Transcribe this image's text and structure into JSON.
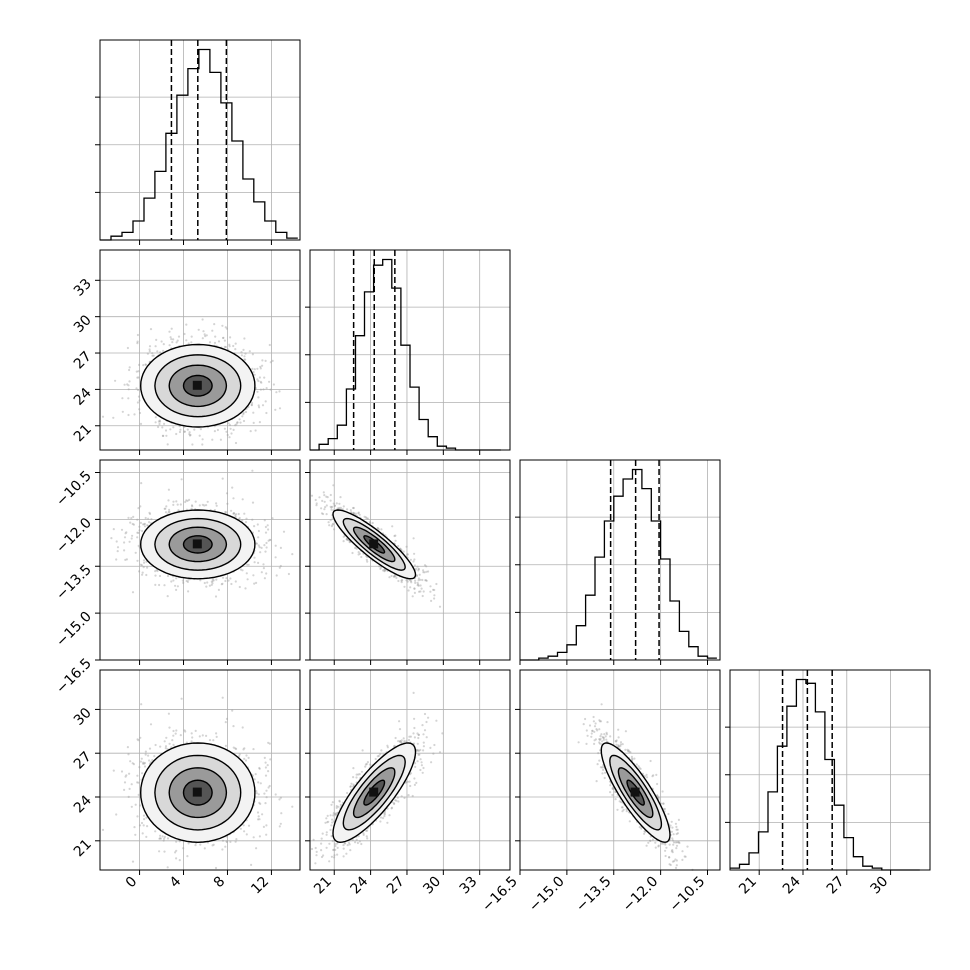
{
  "chart_data": {
    "type": "corner",
    "grid": true,
    "title": "",
    "parameters": [
      {
        "label": "",
        "range": [
          -3.6,
          14.6
        ],
        "ticks": [
          0,
          4,
          8,
          12
        ],
        "tick_labels": [
          "0",
          "4",
          "8",
          "12"
        ],
        "quantiles": [
          2.9,
          5.3,
          7.9
        ]
      },
      {
        "label": "",
        "range": [
          19.0,
          35.5
        ],
        "ticks": [
          21,
          24,
          27,
          30,
          33
        ],
        "tick_labels": [
          "21",
          "24",
          "27",
          "30",
          "33"
        ],
        "quantiles": [
          22.6,
          24.3,
          26.0
        ]
      },
      {
        "label": "",
        "range": [
          -16.5,
          -10.1
        ],
        "ticks": [
          -16.5,
          -15.0,
          -13.5,
          -12.0,
          -10.5
        ],
        "tick_labels": [
          "−16.5",
          "−15.0",
          "−13.5",
          "−12.0",
          "−10.5"
        ],
        "quantiles": [
          -13.6,
          -12.8,
          -12.05
        ]
      },
      {
        "label": "",
        "range": [
          19.0,
          32.7
        ],
        "ticks": [
          21,
          24,
          27,
          30
        ],
        "tick_labels": [
          "21",
          "24",
          "27",
          "30"
        ],
        "quantiles": [
          22.6,
          24.3,
          26.0
        ]
      }
    ],
    "histograms": [
      {
        "param": 0,
        "bin_edges": [
          -3.6,
          -2.6,
          -1.6,
          -0.6,
          0.4,
          1.4,
          2.4,
          3.4,
          4.4,
          5.4,
          6.4,
          7.4,
          8.4,
          9.4,
          10.4,
          11.4,
          12.4,
          13.4,
          14.4
        ],
        "counts": [
          0,
          0.02,
          0.04,
          0.1,
          0.22,
          0.36,
          0.56,
          0.76,
          0.9,
          1.0,
          0.88,
          0.72,
          0.52,
          0.32,
          0.2,
          0.1,
          0.04,
          0.01
        ]
      },
      {
        "param": 1,
        "bin_edges": [
          19.0,
          19.75,
          20.5,
          21.25,
          22.0,
          22.75,
          23.5,
          24.25,
          25.0,
          25.75,
          26.5,
          27.25,
          28.0,
          28.75,
          29.5,
          30.25,
          31.0,
          31.75,
          32.5,
          33.25,
          34.0,
          34.75
        ],
        "counts": [
          0.0,
          0.03,
          0.06,
          0.13,
          0.32,
          0.6,
          0.83,
          0.97,
          1.0,
          0.85,
          0.55,
          0.33,
          0.16,
          0.07,
          0.02,
          0.01,
          0,
          0,
          0,
          0,
          0
        ]
      },
      {
        "param": 2,
        "bin_edges": [
          -16.5,
          -16.2,
          -15.9,
          -15.6,
          -15.3,
          -15.0,
          -14.7,
          -14.4,
          -14.1,
          -13.8,
          -13.5,
          -13.2,
          -12.9,
          -12.6,
          -12.3,
          -12.0,
          -11.7,
          -11.4,
          -11.1,
          -10.8,
          -10.5,
          -10.2
        ],
        "counts": [
          0,
          0,
          0.01,
          0.02,
          0.04,
          0.08,
          0.18,
          0.34,
          0.54,
          0.73,
          0.86,
          0.95,
          1.0,
          0.9,
          0.73,
          0.53,
          0.31,
          0.15,
          0.07,
          0.02,
          0.01
        ]
      },
      {
        "param": 3,
        "bin_edges": [
          19.0,
          19.65,
          20.3,
          20.95,
          21.6,
          22.25,
          22.9,
          23.55,
          24.2,
          24.85,
          25.5,
          26.15,
          26.8,
          27.45,
          28.1,
          28.75,
          29.4,
          30.05,
          30.7,
          31.35,
          32.0
        ],
        "counts": [
          0.01,
          0.03,
          0.09,
          0.2,
          0.41,
          0.65,
          0.86,
          1.0,
          0.98,
          0.83,
          0.58,
          0.34,
          0.17,
          0.07,
          0.02,
          0.01,
          0,
          0,
          0,
          0
        ]
      }
    ],
    "correlations": [
      {
        "pair": [
          1,
          0
        ],
        "corr": 0.0,
        "sd": [
          2.6,
          1.7
        ],
        "center": [
          5.3,
          24.3
        ]
      },
      {
        "pair": [
          2,
          0
        ],
        "corr": 0.0,
        "sd": [
          2.6,
          0.55
        ],
        "center": [
          5.3,
          -12.8
        ]
      },
      {
        "pair": [
          3,
          0
        ],
        "corr": 0.0,
        "sd": [
          2.6,
          1.7
        ],
        "center": [
          5.3,
          24.3
        ]
      },
      {
        "pair": [
          2,
          1
        ],
        "corr": -0.88,
        "sd": [
          1.7,
          0.55
        ],
        "center": [
          24.3,
          -12.8
        ]
      },
      {
        "pair": [
          3,
          1
        ],
        "corr": 0.82,
        "sd": [
          1.7,
          1.7
        ],
        "center": [
          24.3,
          24.3
        ]
      },
      {
        "pair": [
          3,
          2
        ],
        "corr": -0.85,
        "sd": [
          0.55,
          1.7
        ],
        "center": [
          -12.8,
          24.3
        ]
      }
    ],
    "contour_levels_sigma": [
      0.5,
      1.0,
      1.5,
      2.0
    ],
    "colors": {
      "line": "#000000",
      "grid": "#b0b0b0",
      "point": "#a0a0a0"
    }
  }
}
